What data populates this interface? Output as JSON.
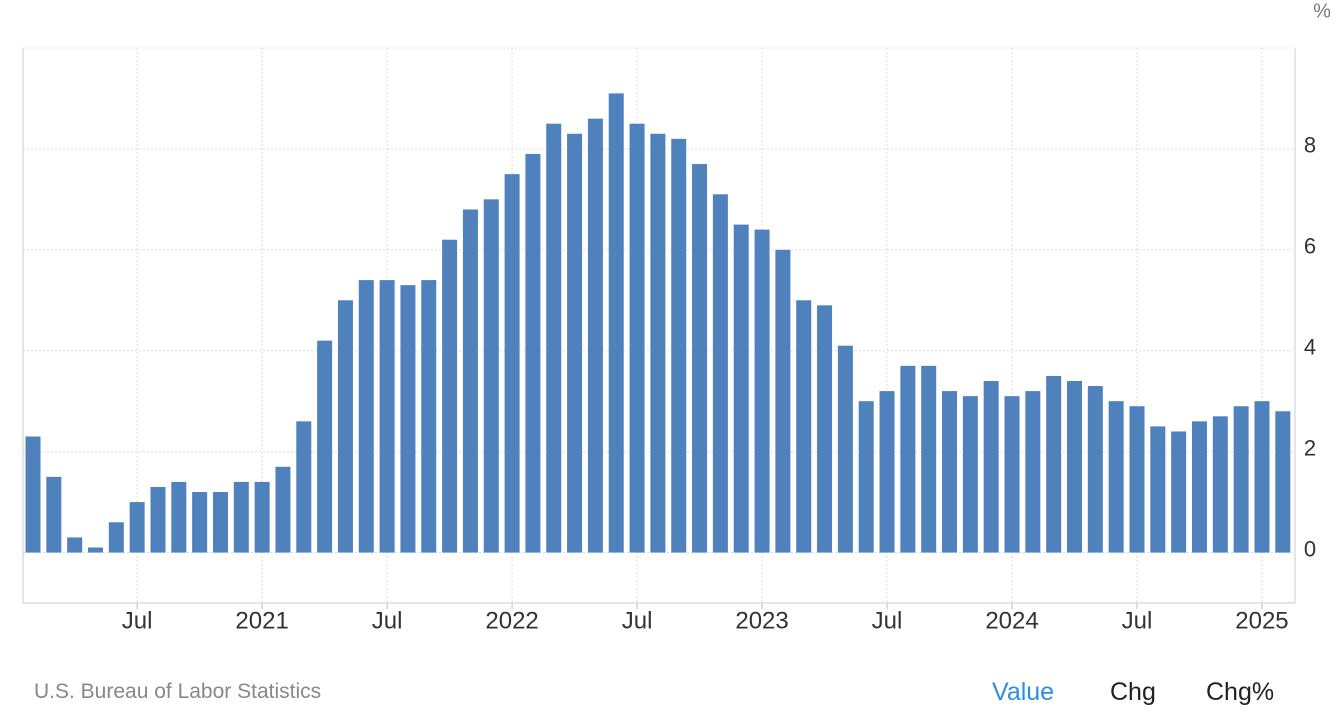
{
  "chart_data": {
    "type": "bar",
    "unit": "%",
    "color": "#4f81bd",
    "categories": [
      null,
      null,
      null,
      null,
      null,
      "Jul",
      null,
      null,
      null,
      null,
      null,
      "2021",
      null,
      null,
      null,
      null,
      null,
      "Jul",
      null,
      null,
      null,
      null,
      null,
      "2022",
      null,
      null,
      null,
      null,
      null,
      "Jul",
      null,
      null,
      null,
      null,
      null,
      "2023",
      null,
      null,
      null,
      null,
      null,
      "Jul",
      null,
      null,
      null,
      null,
      null,
      "2024",
      null,
      null,
      null,
      null,
      null,
      "Jul",
      null,
      null,
      null,
      null,
      null,
      "2025",
      null
    ],
    "values": [
      2.3,
      1.5,
      0.3,
      0.1,
      0.6,
      1.0,
      1.3,
      1.4,
      1.2,
      1.2,
      1.4,
      1.4,
      1.7,
      2.6,
      4.2,
      5.0,
      5.4,
      5.4,
      5.3,
      5.4,
      6.2,
      6.8,
      7.0,
      7.5,
      7.9,
      8.5,
      8.3,
      8.6,
      9.1,
      8.5,
      8.3,
      8.2,
      7.7,
      7.1,
      6.5,
      6.4,
      6.0,
      5.0,
      4.9,
      4.1,
      3.0,
      3.2,
      3.7,
      3.7,
      3.2,
      3.1,
      3.4,
      3.1,
      3.2,
      3.5,
      3.4,
      3.3,
      3.0,
      2.9,
      2.5,
      2.4,
      2.6,
      2.7,
      2.9,
      3.0,
      2.8
    ],
    "ylim": [
      -1,
      10
    ],
    "yticks": [
      0,
      2,
      4,
      6,
      8
    ],
    "grid": true,
    "source": "U.S. Bureau of Labor Statistics",
    "buttons": [
      "Value",
      "Chg",
      "Chg%"
    ]
  }
}
